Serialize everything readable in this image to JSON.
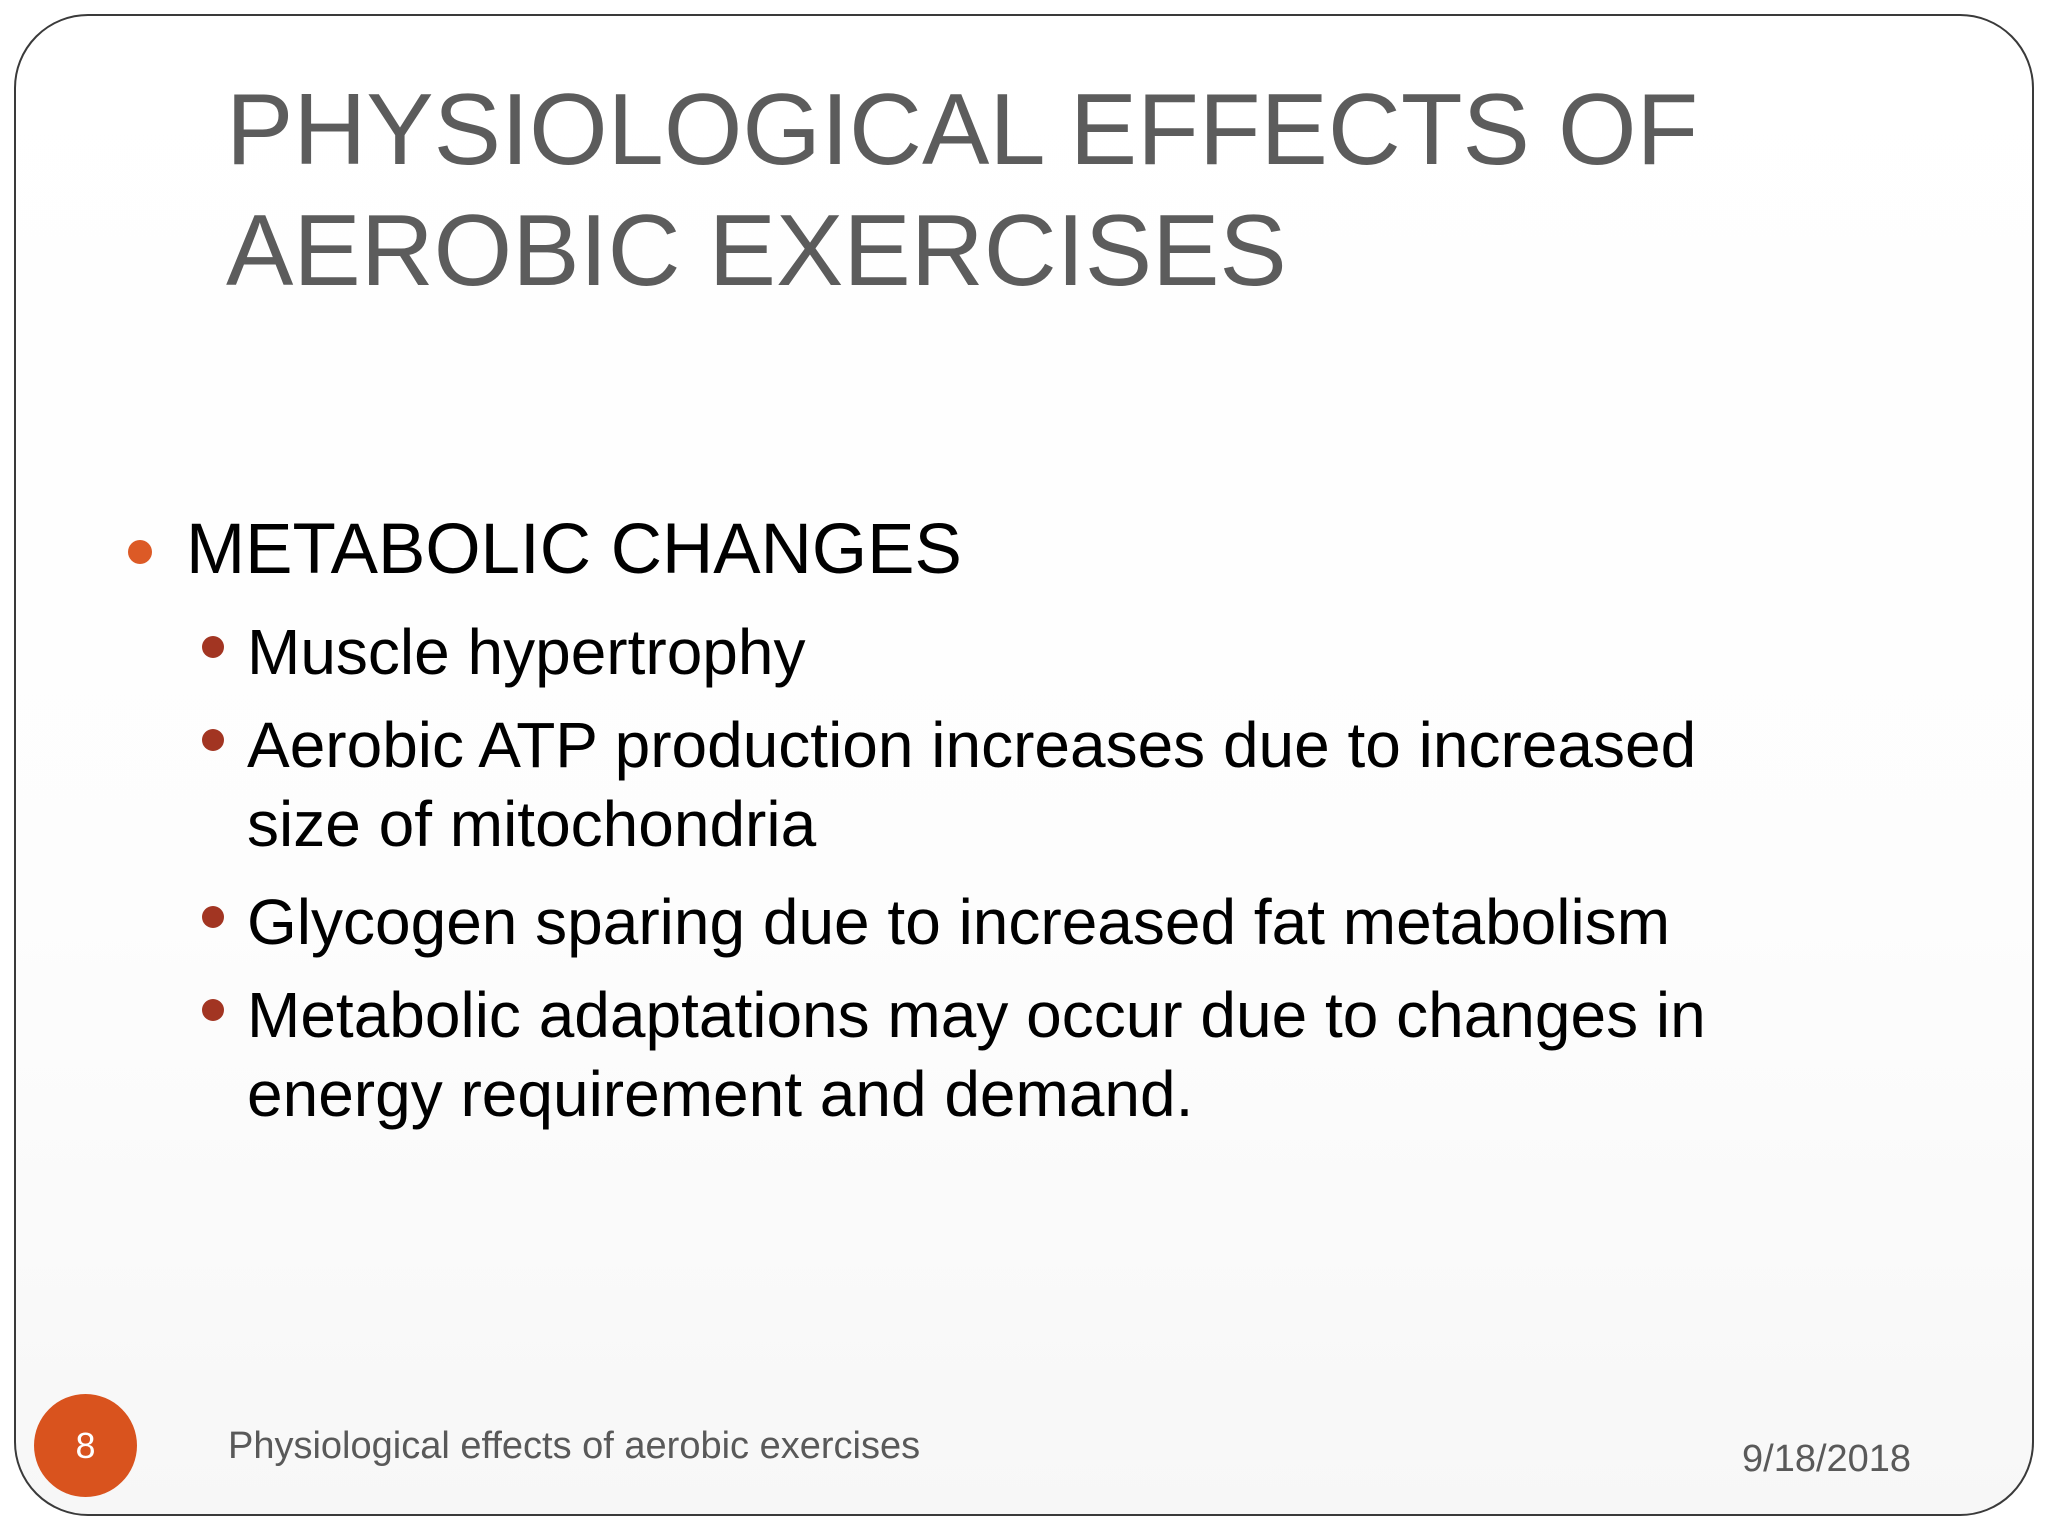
{
  "slide": {
    "title_line1": "PHYSIOLOGICAL EFFECTS OF",
    "title_line2": "AEROBIC EXERCISES",
    "heading": "METABOLIC CHANGES",
    "points": [
      "Muscle hypertrophy",
      "Aerobic  ATP production increases due to increased",
      "size of mitochondria",
      "Glycogen sparing due to increased fat metabolism",
      "Metabolic adaptations may occur due to changes in",
      "energy requirement and demand."
    ]
  },
  "footer": {
    "slide_number": "8",
    "text": "Physiological effects of aerobic exercises",
    "date": "9/18/2018"
  },
  "colors": {
    "accent_orange": "#d9531e",
    "bullet_primary": "#dc5a26",
    "bullet_secondary": "#a23522",
    "title_gray": "#5c5c5c",
    "border": "#3a3a3a"
  }
}
